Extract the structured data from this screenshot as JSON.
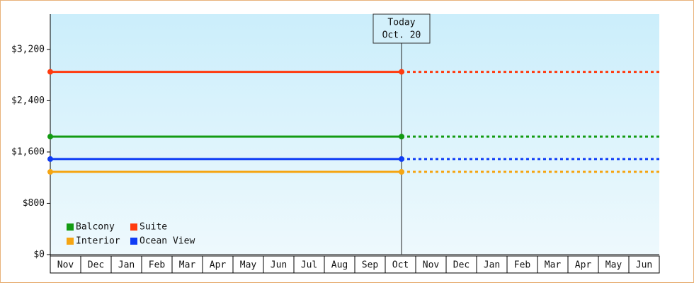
{
  "chart_data": {
    "type": "price-history",
    "categories": [
      "Nov",
      "Dec",
      "Jan",
      "Feb",
      "Mar",
      "Apr",
      "May",
      "Jun",
      "Jul",
      "Aug",
      "Sep",
      "Oct",
      "Nov",
      "Dec",
      "Jan",
      "Feb",
      "Mar",
      "Apr",
      "May",
      "Jun"
    ],
    "ylim": [
      0,
      3750
    ],
    "yticks": [
      {
        "value": 0,
        "label": "$0"
      },
      {
        "value": 800,
        "label": "$800"
      },
      {
        "value": 1600,
        "label": "$1,600"
      },
      {
        "value": 2400,
        "label": "$2,400"
      },
      {
        "value": 3200,
        "label": "$3,200"
      }
    ],
    "today": {
      "title": "Today",
      "date": "Oct. 20"
    },
    "legend": "bottom-left",
    "series": [
      {
        "name": "Balcony",
        "color": "#139b13",
        "value": 1840
      },
      {
        "name": "Suite",
        "color": "#ff3b0f",
        "value": 2850
      },
      {
        "name": "Interior",
        "color": "#f5a512",
        "value": 1290
      },
      {
        "name": "Ocean View",
        "color": "#0f3cf5",
        "value": 1490
      }
    ]
  }
}
